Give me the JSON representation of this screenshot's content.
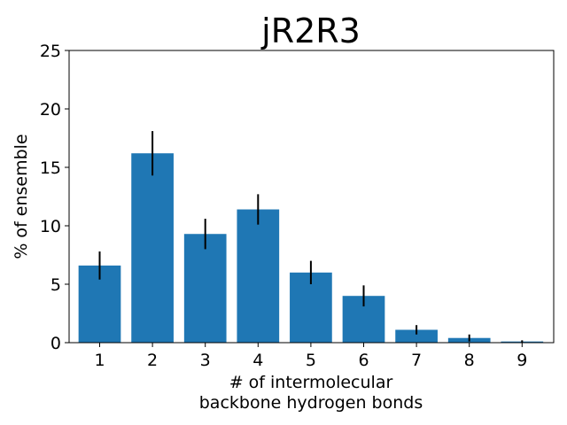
{
  "chart_data": {
    "type": "bar",
    "title": "jR2R3",
    "xlabel_lines": [
      "# of intermolecular",
      "backbone hydrogen bonds"
    ],
    "ylabel": "% of ensemble",
    "categories": [
      "1",
      "2",
      "3",
      "4",
      "5",
      "6",
      "7",
      "8",
      "9"
    ],
    "values": [
      6.6,
      16.2,
      9.3,
      11.4,
      6.0,
      4.0,
      1.1,
      0.4,
      0.1
    ],
    "errors": [
      1.2,
      1.9,
      1.3,
      1.3,
      1.0,
      0.9,
      0.4,
      0.3,
      0.1
    ],
    "ylim": [
      0,
      25
    ],
    "yticks": [
      0,
      5,
      10,
      15,
      20,
      25
    ],
    "grid": false,
    "colors": {
      "bar": "#1f77b4",
      "errorbar": "#000000",
      "axis": "#000000"
    }
  }
}
